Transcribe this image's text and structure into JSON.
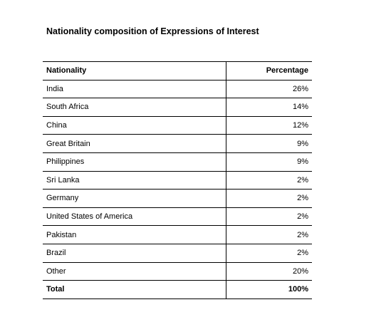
{
  "title": "Nationality composition of Expressions of Interest",
  "table": {
    "headers": {
      "nationality": "Nationality",
      "percentage": "Percentage"
    },
    "rows": [
      {
        "nationality": "India",
        "percentage": "26%"
      },
      {
        "nationality": "South Africa",
        "percentage": "14%"
      },
      {
        "nationality": "China",
        "percentage": "12%"
      },
      {
        "nationality": "Great Britain",
        "percentage": "9%"
      },
      {
        "nationality": "Philippines",
        "percentage": "9%"
      },
      {
        "nationality": "Sri Lanka",
        "percentage": "2%"
      },
      {
        "nationality": "Germany",
        "percentage": "2%"
      },
      {
        "nationality": "United States of America",
        "percentage": "2%"
      },
      {
        "nationality": "Pakistan",
        "percentage": "2%"
      },
      {
        "nationality": "Brazil",
        "percentage": "2%"
      },
      {
        "nationality": "Other",
        "percentage": "20%"
      }
    ],
    "total": {
      "nationality": "Total",
      "percentage": "100%"
    }
  }
}
